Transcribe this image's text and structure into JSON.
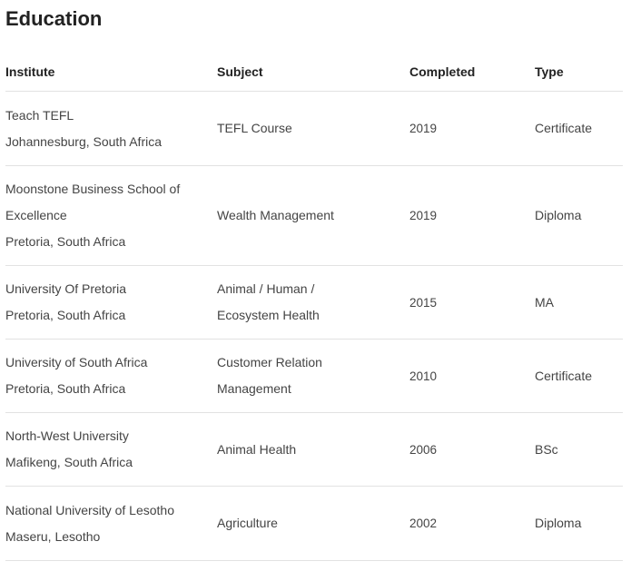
{
  "page": {
    "title": "Education"
  },
  "table": {
    "headers": {
      "institute": "Institute",
      "subject": "Subject",
      "completed": "Completed",
      "type": "Type"
    },
    "rows": [
      {
        "institute": "Teach TEFL",
        "location": "Johannesburg, South Africa",
        "subject": "TEFL Course",
        "completed": "2019",
        "type": "Certificate"
      },
      {
        "institute": "Moonstone Business School of Excellence",
        "location": "Pretoria, South Africa",
        "subject": "Wealth Management",
        "completed": "2019",
        "type": "Diploma"
      },
      {
        "institute": "University Of Pretoria",
        "location": "Pretoria, South Africa",
        "subject": "Animal / Human / Ecosystem Health",
        "completed": "2015",
        "type": "MA"
      },
      {
        "institute": "University of South Africa",
        "location": "Pretoria, South Africa",
        "subject": "Customer Relation Management",
        "completed": "2010",
        "type": "Certificate"
      },
      {
        "institute": "North-West University",
        "location": "Mafikeng, South Africa",
        "subject": "Animal Health",
        "completed": "2006",
        "type": "BSc"
      },
      {
        "institute": "National University of Lesotho",
        "location": "Maseru, Lesotho",
        "subject": "Agriculture",
        "completed": "2002",
        "type": "Diploma"
      }
    ]
  }
}
